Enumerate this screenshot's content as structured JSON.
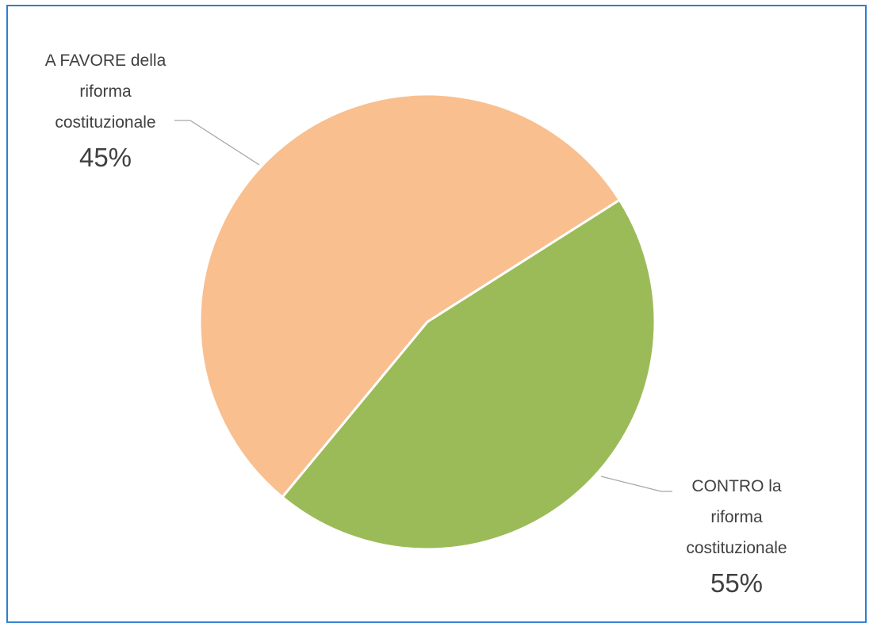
{
  "chart_data": {
    "type": "pie",
    "slices": [
      {
        "label_lines": [
          "A FAVORE della",
          "riforma",
          "costituzionale"
        ],
        "value": 45,
        "percent_label": "45%",
        "color": "#9bbb59"
      },
      {
        "label_lines": [
          "CONTRO la",
          "riforma",
          "costituzionale"
        ],
        "value": 55,
        "percent_label": "55%",
        "color": "#f9bf8f"
      }
    ],
    "leader_line_color": "#a6a6a6",
    "frame_border_color": "#2e7fd0"
  }
}
